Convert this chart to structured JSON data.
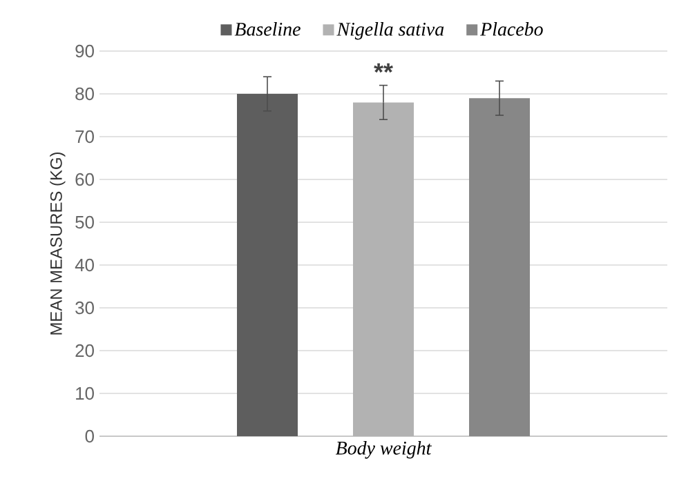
{
  "chart_data": {
    "type": "bar",
    "ylabel": "MEAN MEASURES (KG)",
    "categories": [
      "Body weight"
    ],
    "series": [
      {
        "name": "Baseline",
        "color": "#5e5e5e",
        "values": [
          80
        ],
        "errors": [
          4
        ]
      },
      {
        "name": "Nigella sativa",
        "color": "#b2b2b2",
        "values": [
          78
        ],
        "errors": [
          4
        ]
      },
      {
        "name": "Placebo",
        "color": "#878787",
        "values": [
          79
        ],
        "errors": [
          4
        ]
      }
    ],
    "annotations": [
      "**"
    ],
    "ylim": [
      0,
      90
    ],
    "yticks": [
      0,
      10,
      20,
      30,
      40,
      50,
      60,
      70,
      80,
      90
    ],
    "grid": "y",
    "legend": "top"
  }
}
